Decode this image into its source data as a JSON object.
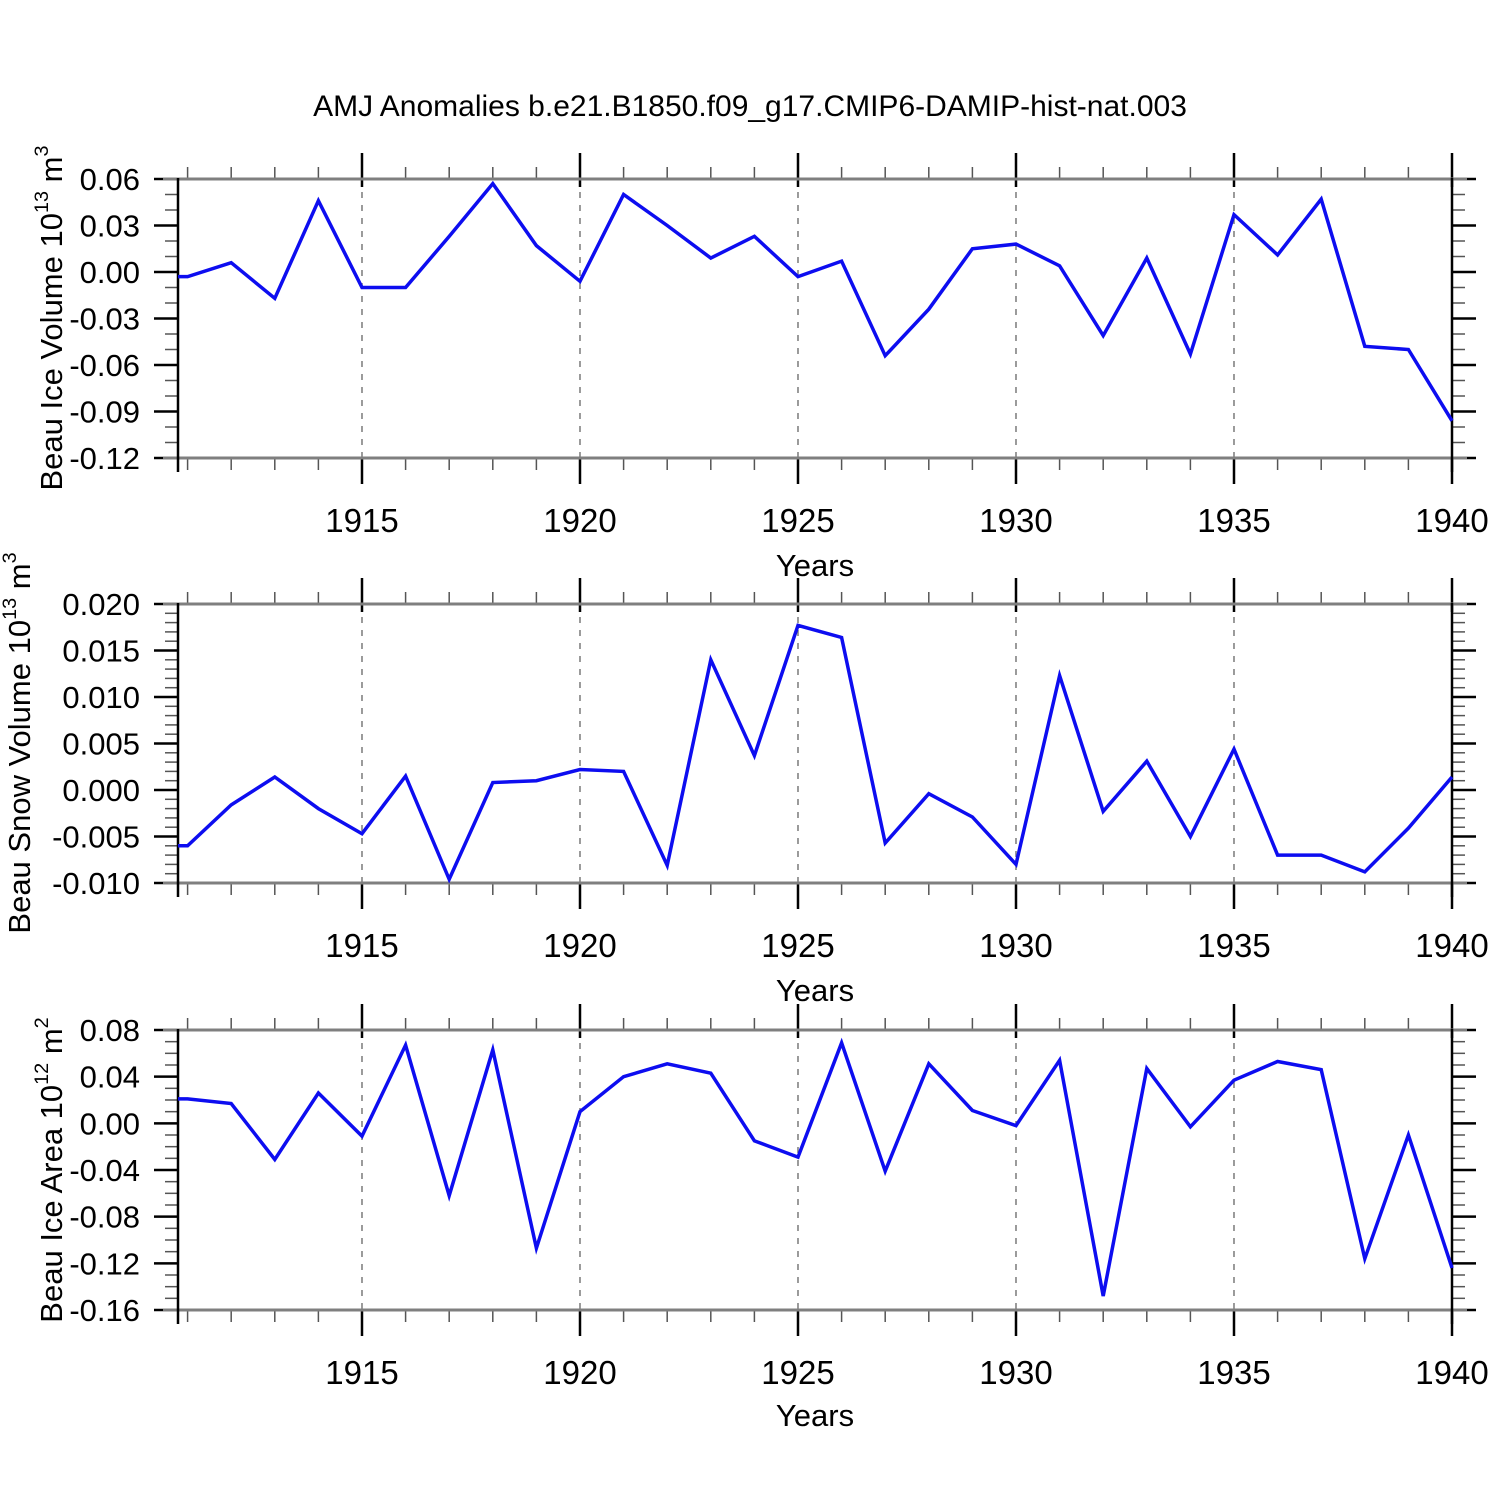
{
  "title": "AMJ Anomalies b.e21.B1850.f09_g17.CMIP6-DAMIP-hist-nat.003",
  "chart_data": [
    {
      "type": "line",
      "panel": "beau-ice-volume",
      "ylabel": "Beau Ice Volume 10^13 m^3",
      "ylabel_parts": {
        "main": "Beau Ice Volume 10",
        "sup1": "13",
        "mid": " m",
        "sup2": "3"
      },
      "xlabel": "Years",
      "x": [
        1911,
        1912,
        1913,
        1914,
        1915,
        1916,
        1917,
        1918,
        1919,
        1920,
        1921,
        1922,
        1923,
        1924,
        1925,
        1926,
        1927,
        1928,
        1929,
        1930,
        1931,
        1932,
        1933,
        1934,
        1935,
        1936,
        1937,
        1938,
        1939,
        1940
      ],
      "values": [
        -0.003,
        0.006,
        -0.017,
        0.046,
        -0.01,
        -0.01,
        0.023,
        0.057,
        0.017,
        -0.006,
        0.05,
        0.03,
        0.009,
        0.023,
        -0.003,
        0.007,
        -0.054,
        -0.024,
        0.015,
        0.018,
        0.004,
        -0.041,
        0.009,
        -0.053,
        0.037,
        0.011,
        0.047,
        -0.048,
        -0.05,
        -0.096
      ],
      "ylim": [
        -0.12,
        0.06
      ],
      "ytick_labels": [
        "0.06",
        "0.03",
        "0.00",
        "-0.03",
        "-0.06",
        "-0.09",
        "-0.12"
      ],
      "ytick_step": 0.03,
      "yminor_step": 0.01,
      "y_decimals": 2,
      "xticks": [
        1915,
        1920,
        1925,
        1930,
        1935,
        1940
      ],
      "xgrid_dashed": [
        1915,
        1920,
        1925,
        1930,
        1935
      ],
      "grid": "dashed-vertical",
      "legend": "none",
      "line_color": "#0D0DF0"
    },
    {
      "type": "line",
      "panel": "beau-snow-volume",
      "ylabel": "Beau Snow Volume 10^13 m^3",
      "ylabel_parts": {
        "main": "Beau Snow Volume 10",
        "sup1": "13",
        "mid": " m",
        "sup2": "3"
      },
      "xlabel": "Years",
      "x": [
        1911,
        1912,
        1913,
        1914,
        1915,
        1916,
        1917,
        1918,
        1919,
        1920,
        1921,
        1922,
        1923,
        1924,
        1925,
        1926,
        1927,
        1928,
        1929,
        1930,
        1931,
        1932,
        1933,
        1934,
        1935,
        1936,
        1937,
        1938,
        1939,
        1940
      ],
      "values": [
        -0.006,
        -0.0016,
        0.0014,
        -0.002,
        -0.0047,
        0.0015,
        -0.0096,
        0.0008,
        0.001,
        0.0022,
        0.002,
        -0.0081,
        0.014,
        0.0037,
        0.0177,
        0.0164,
        -0.0057,
        -0.0004,
        -0.0029,
        -0.008,
        0.0123,
        -0.0023,
        0.0031,
        -0.005,
        0.0044,
        -0.007,
        -0.007,
        -0.0088,
        -0.0041,
        0.0014
      ],
      "ylim": [
        -0.01,
        0.02
      ],
      "ytick_labels": [
        "0.020",
        "0.015",
        "0.010",
        "0.005",
        "0.000",
        "-0.005",
        "-0.010"
      ],
      "ytick_step": 0.005,
      "yminor_step": 0.001,
      "y_decimals": 3,
      "xticks": [
        1915,
        1920,
        1925,
        1930,
        1935,
        1940
      ],
      "xgrid_dashed": [
        1915,
        1920,
        1925,
        1930,
        1935
      ],
      "grid": "dashed-vertical",
      "legend": "none",
      "line_color": "#0D0DF0"
    },
    {
      "type": "line",
      "panel": "beau-ice-area",
      "ylabel": "Beau Ice Area 10^12 m^2",
      "ylabel_parts": {
        "main": "Beau Ice Area 10",
        "sup1": "12",
        "mid": " m",
        "sup2": "2"
      },
      "xlabel": "Years",
      "x": [
        1911,
        1912,
        1913,
        1914,
        1915,
        1916,
        1917,
        1918,
        1919,
        1920,
        1921,
        1922,
        1923,
        1924,
        1925,
        1926,
        1927,
        1928,
        1929,
        1930,
        1931,
        1932,
        1933,
        1934,
        1935,
        1936,
        1937,
        1938,
        1939,
        1940
      ],
      "values": [
        0.021,
        0.017,
        -0.031,
        0.026,
        -0.011,
        0.067,
        -0.062,
        0.063,
        -0.107,
        0.01,
        0.04,
        0.051,
        0.043,
        -0.015,
        -0.029,
        0.069,
        -0.041,
        0.051,
        0.011,
        -0.002,
        0.054,
        -0.148,
        0.047,
        -0.003,
        0.037,
        0.053,
        0.046,
        -0.116,
        -0.01,
        -0.124
      ],
      "ylim": [
        -0.16,
        0.08
      ],
      "ytick_labels": [
        "0.08",
        "0.04",
        "0.00",
        "-0.04",
        "-0.08",
        "-0.12",
        "-0.16"
      ],
      "ytick_step": 0.04,
      "yminor_step": 0.01,
      "y_decimals": 2,
      "xticks": [
        1915,
        1920,
        1925,
        1930,
        1935,
        1940
      ],
      "xgrid_dashed": [
        1915,
        1920,
        1925,
        1930,
        1935
      ],
      "grid": "dashed-vertical",
      "legend": "none",
      "line_color": "#0D0DF0"
    }
  ]
}
